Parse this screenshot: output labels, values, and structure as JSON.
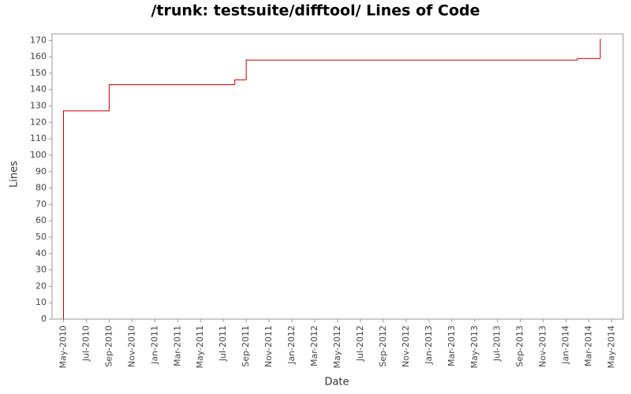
{
  "chart_data": {
    "type": "step",
    "title": "/trunk: testsuite/difftool/ Lines of Code",
    "x_label": "Date",
    "y_label": "Lines",
    "x": [
      "2010-05",
      "2010-05",
      "2010-05",
      "2010-09",
      "2010-09",
      "2011-08",
      "2011-09",
      "2014-02",
      "2014-04"
    ],
    "series": [
      {
        "name": "Lines",
        "color": "#c00000",
        "values": [
          0,
          121,
          127,
          142,
          143,
          146,
          158,
          159,
          171
        ]
      }
    ],
    "xlim": [
      "2010-04",
      "2014-06"
    ],
    "xticks": [
      {
        "value": "2010-05",
        "label": "May-2010"
      },
      {
        "value": "2010-07",
        "label": "Jul-2010"
      },
      {
        "value": "2010-09",
        "label": "Sep-2010"
      },
      {
        "value": "2010-11",
        "label": "Nov-2010"
      },
      {
        "value": "2011-01",
        "label": "Jan-2011"
      },
      {
        "value": "2011-03",
        "label": "Mar-2011"
      },
      {
        "value": "2011-05",
        "label": "May-2011"
      },
      {
        "value": "2011-07",
        "label": "Jul-2011"
      },
      {
        "value": "2011-09",
        "label": "Sep-2011"
      },
      {
        "value": "2011-11",
        "label": "Nov-2011"
      },
      {
        "value": "2012-01",
        "label": "Jan-2012"
      },
      {
        "value": "2012-03",
        "label": "Mar-2012"
      },
      {
        "value": "2012-05",
        "label": "May-2012"
      },
      {
        "value": "2012-07",
        "label": "Jul-2012"
      },
      {
        "value": "2012-09",
        "label": "Sep-2012"
      },
      {
        "value": "2012-11",
        "label": "Nov-2012"
      },
      {
        "value": "2013-01",
        "label": "Jan-2013"
      },
      {
        "value": "2013-03",
        "label": "Mar-2013"
      },
      {
        "value": "2013-05",
        "label": "May-2013"
      },
      {
        "value": "2013-07",
        "label": "Jul-2013"
      },
      {
        "value": "2013-09",
        "label": "Sep-2013"
      },
      {
        "value": "2013-11",
        "label": "Nov-2013"
      },
      {
        "value": "2014-01",
        "label": "Jan-2014"
      },
      {
        "value": "2014-03",
        "label": "Mar-2014"
      },
      {
        "value": "2014-05",
        "label": "May-2014"
      }
    ],
    "ylim": [
      0,
      174
    ],
    "yticks": [
      0,
      10,
      20,
      30,
      40,
      50,
      60,
      70,
      80,
      90,
      100,
      110,
      120,
      130,
      140,
      150,
      160,
      170
    ]
  }
}
